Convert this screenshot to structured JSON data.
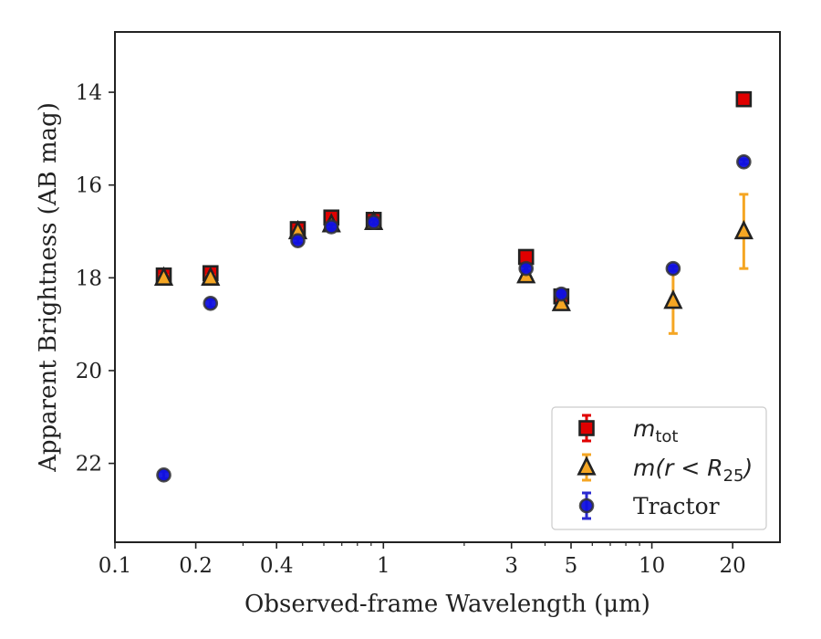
{
  "chart_data": {
    "type": "scatter",
    "title": "",
    "xlabel": "Observed-frame Wavelength (μm)",
    "ylabel": "Apparent Brightness (AB mag)",
    "xscale": "log",
    "xlim": [
      0.1,
      30
    ],
    "ylim": [
      23.7,
      12.7
    ],
    "y_inverted": true,
    "grid": false,
    "legend_position": "bottom-right",
    "xticks": [
      0.1,
      0.2,
      0.4,
      1,
      3,
      5,
      10,
      20
    ],
    "xtick_labels": [
      "0.1",
      "0.2",
      "0.4",
      "1",
      "3",
      "5",
      "10",
      "20"
    ],
    "yticks": [
      14,
      16,
      18,
      20,
      22
    ],
    "ytick_labels": [
      "14",
      "16",
      "18",
      "20",
      "22"
    ],
    "series": [
      {
        "name": "m_tot",
        "legend_label": {
          "main": "m",
          "sub": "tot"
        },
        "marker": "square",
        "color": "#e00000",
        "errcolor": "#e00000",
        "edgecolor": "#222222",
        "points": [
          {
            "x": 0.152,
            "y": 17.95,
            "err": 0.12
          },
          {
            "x": 0.227,
            "y": 17.9,
            "err": 0.12
          },
          {
            "x": 0.48,
            "y": 16.95,
            "err": 0.12
          },
          {
            "x": 0.64,
            "y": 16.7,
            "err": 0.12
          },
          {
            "x": 0.92,
            "y": 16.75,
            "err": 0.12
          },
          {
            "x": 3.4,
            "y": 17.55,
            "err": 0.05
          },
          {
            "x": 4.6,
            "y": 18.4,
            "err": 0.05
          },
          {
            "x": 22.0,
            "y": 14.15,
            "err": 0.05
          }
        ]
      },
      {
        "name": "m(r < R25)",
        "legend_label": {
          "main": "m(r < R",
          "sub": "25",
          "tail": ")"
        },
        "marker": "triangle",
        "color": "#f5a623",
        "errcolor": "#f5a623",
        "edgecolor": "#222222",
        "points": [
          {
            "x": 0.152,
            "y": 18.0,
            "err": 0.05
          },
          {
            "x": 0.227,
            "y": 18.0,
            "err": 0.05
          },
          {
            "x": 0.48,
            "y": 17.0,
            "err": 0.05
          },
          {
            "x": 0.64,
            "y": 16.85,
            "err": 0.05
          },
          {
            "x": 0.92,
            "y": 16.8,
            "err": 0.05
          },
          {
            "x": 3.4,
            "y": 17.95,
            "err": 0.05
          },
          {
            "x": 4.6,
            "y": 18.55,
            "err": 0.05
          },
          {
            "x": 12.0,
            "y": 18.5,
            "err": 0.7
          },
          {
            "x": 22.0,
            "y": 17.0,
            "err": 0.8
          }
        ]
      },
      {
        "name": "Tractor",
        "legend_label": {
          "main": "Tractor"
        },
        "marker": "circle",
        "color": "#1010e0",
        "errcolor": "#2a2ad0",
        "edgecolor": "#333333",
        "points": [
          {
            "x": 0.152,
            "y": 22.25,
            "err": 0.08
          },
          {
            "x": 0.227,
            "y": 18.55,
            "err": 0.08
          },
          {
            "x": 0.48,
            "y": 17.2,
            "err": 0.05
          },
          {
            "x": 0.64,
            "y": 16.9,
            "err": 0.05
          },
          {
            "x": 0.92,
            "y": 16.8,
            "err": 0.05
          },
          {
            "x": 3.4,
            "y": 17.8,
            "err": 0.05
          },
          {
            "x": 4.6,
            "y": 18.35,
            "err": 0.05
          },
          {
            "x": 12.0,
            "y": 17.8,
            "err": 0.05
          },
          {
            "x": 22.0,
            "y": 15.5,
            "err": 0.05
          }
        ]
      }
    ]
  }
}
